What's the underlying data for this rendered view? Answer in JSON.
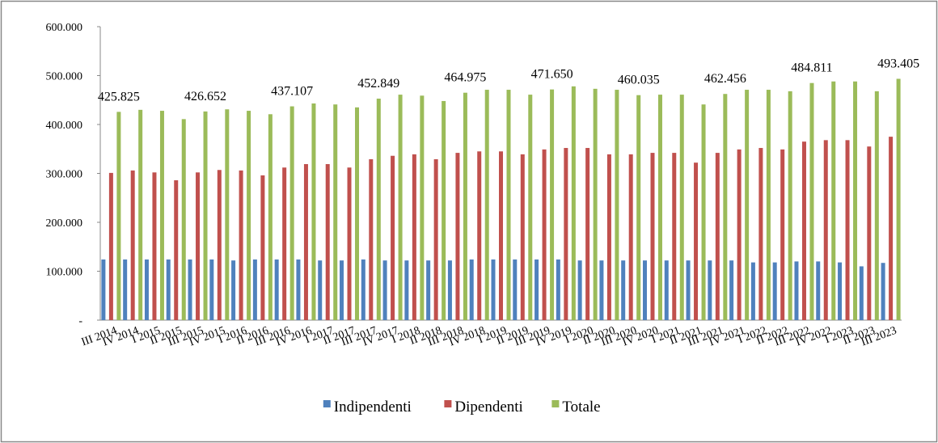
{
  "chart_data": {
    "type": "bar",
    "categories": [
      "III 2014",
      "IV 2014",
      "I 2015",
      "II 2015",
      "III 2015",
      "IV 2015",
      "I 2016",
      "II 2016",
      "III 2016",
      "IV 2016",
      "I 2017",
      "II 2017",
      "III 2017",
      "IV 2017",
      "I 2018",
      "II 2018",
      "III 2018",
      "IV 2018",
      "I 2019",
      "II 2019",
      "III 2019",
      "IV 2019",
      "I 2020",
      "II 2020",
      "III 2020",
      "IV 2020",
      "I 2021",
      "II 2021",
      "III 2021",
      "IV 2021",
      "I 2022",
      "II 2022",
      "III 2022",
      "IV 2022",
      "I 2023",
      "II 2023",
      "III 2023"
    ],
    "series": [
      {
        "name": "Indipendenti",
        "color": "#4f81bd",
        "values": [
          124000,
          124000,
          124000,
          124000,
          124000,
          124000,
          122000,
          124000,
          124000,
          124000,
          122000,
          122000,
          124000,
          122000,
          122000,
          122000,
          122000,
          124000,
          124000,
          124000,
          124000,
          124000,
          122000,
          122000,
          122000,
          122000,
          122000,
          122000,
          122000,
          122000,
          118000,
          118000,
          120000,
          120000,
          118000,
          110000,
          117000
        ]
      },
      {
        "name": "Dipendenti",
        "color": "#c0504d",
        "values": [
          301000,
          306000,
          302000,
          286000,
          302000,
          307000,
          306000,
          296000,
          312000,
          319000,
          319000,
          312000,
          329000,
          336000,
          339000,
          329000,
          342000,
          345000,
          345000,
          339000,
          349000,
          352000,
          352000,
          339000,
          339000,
          342000,
          342000,
          322000,
          342000,
          349000,
          352000,
          349000,
          365000,
          368000,
          368000,
          355000,
          375000
        ]
      },
      {
        "name": "Totale",
        "color": "#9bbb59",
        "values": [
          425825,
          430000,
          428000,
          411000,
          426652,
          431000,
          428000,
          421000,
          437107,
          443000,
          441000,
          435000,
          452849,
          461000,
          459000,
          448000,
          464975,
          471000,
          471000,
          461000,
          471650,
          478000,
          473000,
          471000,
          460035,
          461000,
          461000,
          441000,
          462456,
          471000,
          471000,
          468000,
          484811,
          488000,
          488000,
          468000,
          493405
        ],
        "value_labels": [
          "425.825",
          null,
          null,
          null,
          "426.652",
          null,
          null,
          null,
          "437.107",
          null,
          null,
          null,
          "452.849",
          null,
          null,
          null,
          "464.975",
          null,
          null,
          null,
          "471.650",
          null,
          null,
          null,
          "460.035",
          null,
          null,
          null,
          "462.456",
          null,
          null,
          null,
          "484.811",
          null,
          null,
          null,
          "493.405"
        ]
      }
    ],
    "ylim": [
      0,
      600000
    ],
    "yticks": [
      {
        "value": 0,
        "label": "-"
      },
      {
        "value": 100000,
        "label": "100.000"
      },
      {
        "value": 200000,
        "label": "200.000"
      },
      {
        "value": 300000,
        "label": "300.000"
      },
      {
        "value": 400000,
        "label": "400.000"
      },
      {
        "value": 500000,
        "label": "500.000"
      },
      {
        "value": 600000,
        "label": "600.000"
      }
    ],
    "grid": false,
    "legend": "bottom"
  }
}
